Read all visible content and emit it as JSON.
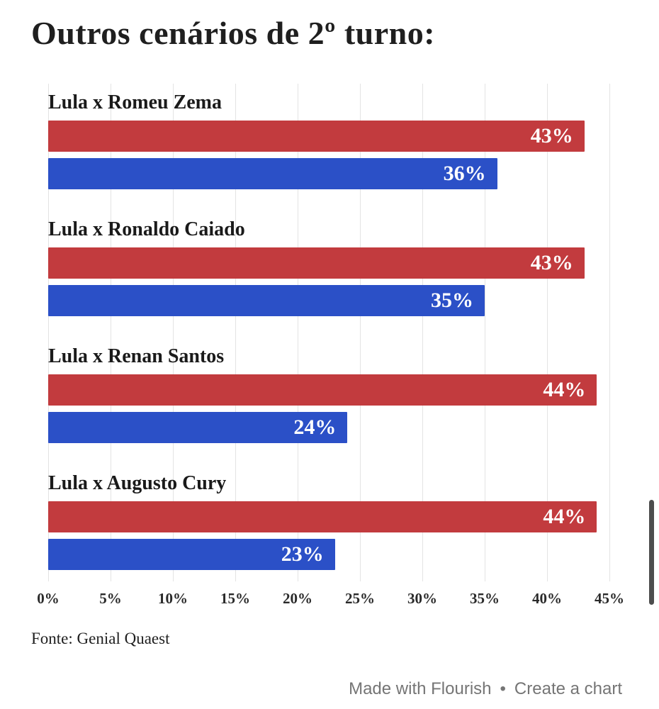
{
  "title": "Outros cenários de 2º turno:",
  "source": "Fonte: Genial Quaest",
  "attribution": {
    "made_with": "Made with Flourish",
    "separator": "•",
    "create": "Create a chart"
  },
  "colors": {
    "red": "#c23b3e",
    "blue": "#2b50c7",
    "grid": "#e3e3e3",
    "text": "#1a1a1a",
    "attribution_text": "#757575"
  },
  "chart_data": {
    "type": "bar",
    "orientation": "horizontal",
    "title": "Outros cenários de 2º turno:",
    "categories": [
      "Lula x Romeu Zema",
      "Lula x Ronaldo Caiado",
      "Lula x Renan Santos",
      "Lula x Augusto Cury"
    ],
    "series": [
      {
        "name": "red",
        "color": "#c23b3e",
        "values": [
          43,
          43,
          44,
          44
        ]
      },
      {
        "name": "blue",
        "color": "#2b50c7",
        "values": [
          36,
          35,
          24,
          23
        ]
      }
    ],
    "value_label_format": "percent",
    "x_ticks": [
      "0%",
      "5%",
      "10%",
      "15%",
      "20%",
      "25%",
      "30%",
      "35%",
      "40%",
      "45%"
    ],
    "xlim": [
      0,
      45
    ],
    "grid": true,
    "legend": "none",
    "xlabel": "",
    "ylabel": ""
  }
}
